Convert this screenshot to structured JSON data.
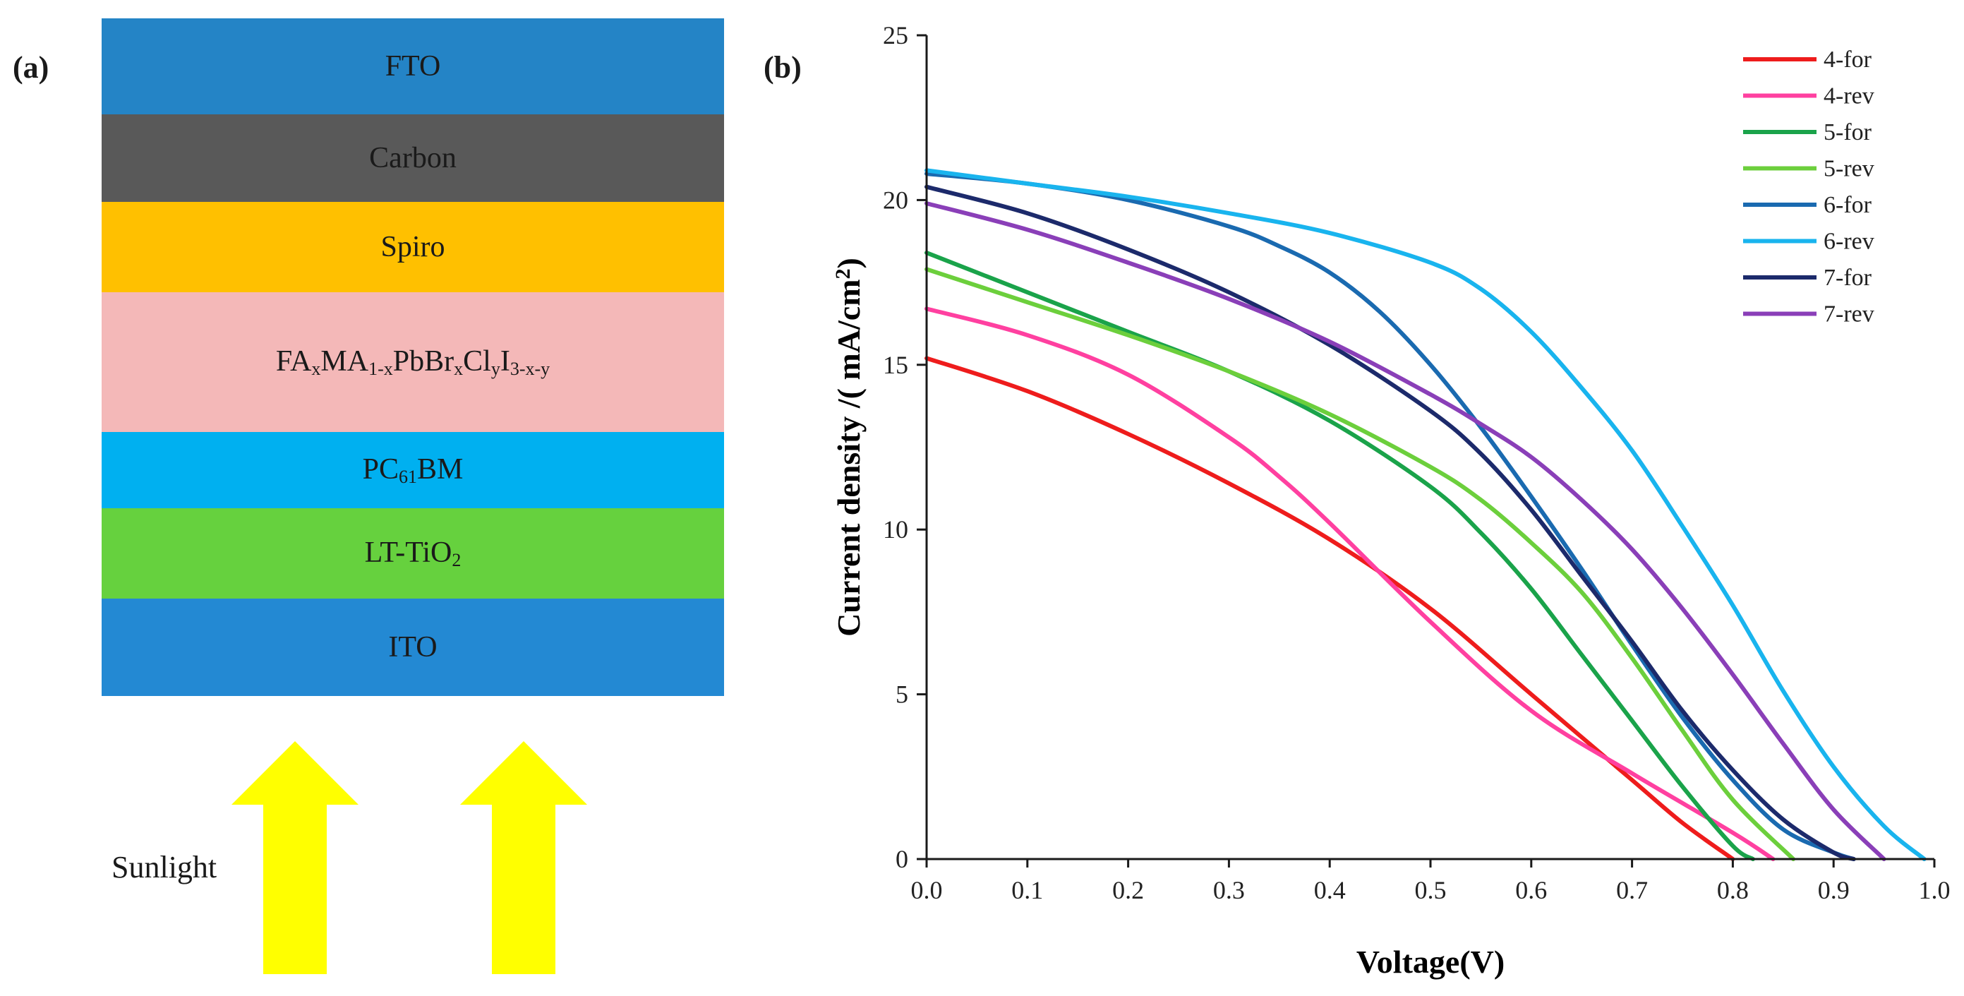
{
  "panels": {
    "a_label": "(a)",
    "b_label": "(b)"
  },
  "device_stack": {
    "layers": [
      {
        "name": "FTO"
      },
      {
        "name": "Carbon"
      },
      {
        "name": "Spiro"
      },
      {
        "name": "FAxMA1-xPbBrxClyI3-x-y",
        "parts": [
          [
            "FA",
            ""
          ],
          [
            "x",
            "sub"
          ],
          [
            "MA",
            ""
          ],
          [
            "1-x",
            "sub"
          ],
          [
            "PbBr",
            ""
          ],
          [
            "x",
            "sub"
          ],
          [
            "Cl",
            ""
          ],
          [
            "y",
            "sub"
          ],
          [
            "I",
            ""
          ],
          [
            "3-x-y",
            "sub"
          ]
        ]
      },
      {
        "name": "PC61BM",
        "parts": [
          [
            "PC",
            ""
          ],
          [
            "61",
            "sub"
          ],
          [
            "BM",
            ""
          ]
        ]
      },
      {
        "name": "LT-TiO2",
        "parts": [
          [
            "LT-TiO",
            ""
          ],
          [
            "2",
            "sub"
          ]
        ]
      },
      {
        "name": "ITO"
      }
    ],
    "sunlight_label": "Sunlight",
    "arrow_color": "#ffff00"
  },
  "chart_data": {
    "type": "line",
    "xlabel": "Voltage(V)",
    "ylabel": "Current density /( mA/cm",
    "ylabel_sup": "2",
    "ylabel_end": ")",
    "xlim": [
      0.0,
      1.0
    ],
    "ylim": [
      0,
      25
    ],
    "xticks": [
      0.0,
      0.1,
      0.2,
      0.3,
      0.4,
      0.5,
      0.6,
      0.7,
      0.8,
      0.9,
      1.0
    ],
    "xtick_labels": [
      "0.0",
      "0.1",
      "0.2",
      "0.3",
      "0.4",
      "0.5",
      "0.6",
      "0.7",
      "0.8",
      "0.9",
      "1.0"
    ],
    "yticks": [
      0,
      5,
      10,
      15,
      20,
      25
    ],
    "ytick_labels": [
      "0",
      "5",
      "10",
      "15",
      "20",
      "25"
    ],
    "legend_position": "top-right",
    "series": [
      {
        "name": "4-for",
        "color": "#ee1c1c",
        "x": [
          0,
          0.1,
          0.2,
          0.3,
          0.4,
          0.5,
          0.6,
          0.7,
          0.75,
          0.8
        ],
        "y": [
          15.2,
          14.2,
          12.9,
          11.4,
          9.7,
          7.6,
          5.0,
          2.4,
          1.1,
          0
        ]
      },
      {
        "name": "4-rev",
        "color": "#ff40a0",
        "x": [
          0,
          0.1,
          0.2,
          0.3,
          0.35,
          0.4,
          0.5,
          0.6,
          0.7,
          0.8,
          0.84
        ],
        "y": [
          16.7,
          15.9,
          14.7,
          12.8,
          11.6,
          10.2,
          7.2,
          4.5,
          2.6,
          0.8,
          0
        ]
      },
      {
        "name": "5-for",
        "color": "#1aa34a",
        "x": [
          0,
          0.1,
          0.2,
          0.3,
          0.4,
          0.5,
          0.55,
          0.6,
          0.65,
          0.7,
          0.75,
          0.8,
          0.82
        ],
        "y": [
          18.4,
          17.2,
          16.0,
          14.8,
          13.3,
          11.3,
          9.9,
          8.2,
          6.2,
          4.2,
          2.2,
          0.4,
          0
        ]
      },
      {
        "name": "5-rev",
        "color": "#6ccf3c",
        "x": [
          0,
          0.1,
          0.2,
          0.3,
          0.4,
          0.5,
          0.55,
          0.6,
          0.65,
          0.7,
          0.75,
          0.8,
          0.86
        ],
        "y": [
          17.9,
          16.9,
          15.9,
          14.8,
          13.5,
          11.9,
          10.9,
          9.6,
          8.1,
          6.1,
          3.9,
          1.8,
          0
        ]
      },
      {
        "name": "6-for",
        "color": "#1a6ab0",
        "x": [
          0,
          0.1,
          0.2,
          0.3,
          0.35,
          0.4,
          0.45,
          0.5,
          0.55,
          0.6,
          0.65,
          0.7,
          0.75,
          0.8,
          0.85,
          0.9,
          0.92
        ],
        "y": [
          20.8,
          20.5,
          20.0,
          19.2,
          18.6,
          17.8,
          16.6,
          15.0,
          13.1,
          11.0,
          8.8,
          6.5,
          4.3,
          2.4,
          0.9,
          0.2,
          0
        ]
      },
      {
        "name": "6-rev",
        "color": "#19b4ee",
        "x": [
          0,
          0.1,
          0.2,
          0.3,
          0.4,
          0.5,
          0.55,
          0.6,
          0.65,
          0.7,
          0.75,
          0.8,
          0.85,
          0.9,
          0.95,
          0.99
        ],
        "y": [
          20.9,
          20.5,
          20.1,
          19.6,
          19.0,
          18.1,
          17.3,
          16.0,
          14.3,
          12.4,
          10.1,
          7.7,
          5.1,
          2.8,
          1.0,
          0
        ]
      },
      {
        "name": "7-for",
        "color": "#1c2a6b",
        "x": [
          0,
          0.1,
          0.2,
          0.3,
          0.4,
          0.5,
          0.55,
          0.6,
          0.65,
          0.7,
          0.75,
          0.8,
          0.85,
          0.9,
          0.92
        ],
        "y": [
          20.4,
          19.6,
          18.5,
          17.2,
          15.6,
          13.6,
          12.3,
          10.6,
          8.6,
          6.6,
          4.5,
          2.7,
          1.2,
          0.2,
          0
        ]
      },
      {
        "name": "7-rev",
        "color": "#8a3fb8",
        "x": [
          0,
          0.1,
          0.2,
          0.3,
          0.4,
          0.5,
          0.55,
          0.6,
          0.65,
          0.7,
          0.75,
          0.8,
          0.85,
          0.9,
          0.95
        ],
        "y": [
          19.9,
          19.1,
          18.1,
          17.0,
          15.7,
          14.1,
          13.2,
          12.2,
          10.9,
          9.4,
          7.6,
          5.6,
          3.5,
          1.5,
          0
        ]
      }
    ]
  }
}
